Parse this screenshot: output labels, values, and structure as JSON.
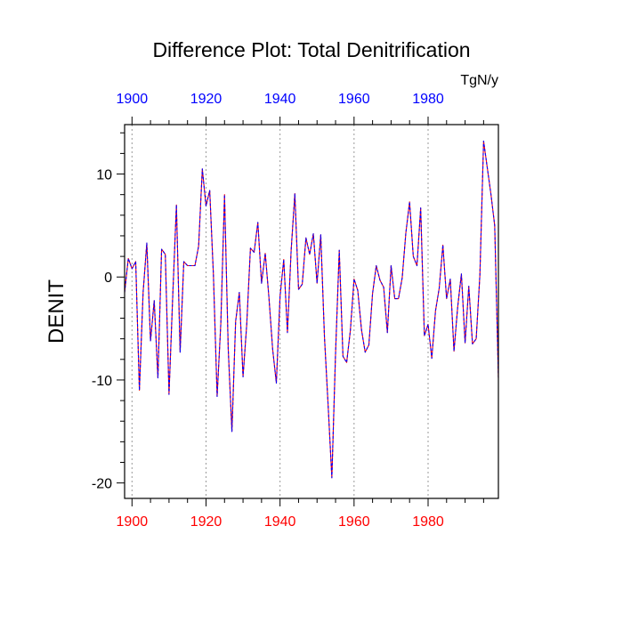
{
  "chart_data": {
    "type": "line",
    "title": "Difference Plot: Total Denitrification",
    "units": "TgN/y",
    "ylabel": "DENIT",
    "xlabel": "",
    "xlim": [
      1898,
      1999
    ],
    "ylim": [
      -21.5,
      14.8
    ],
    "x_ticks": [
      1900,
      1920,
      1940,
      1960,
      1980
    ],
    "y_ticks": [
      10,
      0,
      -10,
      -20
    ],
    "y_tick_labels": [
      "10",
      "0",
      "-10",
      "-20"
    ],
    "x_tick_labels_bottom": [
      "1900",
      "1920",
      "1940",
      "1960",
      "1980"
    ],
    "x_tick_labels_top": [
      "1900",
      "1920",
      "1940",
      "1960",
      "1980"
    ],
    "grid": "vertical dotted at major x ticks",
    "colors": {
      "bottom_axis_labels": "#ff0000",
      "top_axis_labels": "#0000ff",
      "series_a": "#ff0000",
      "series_b": "#0000ff",
      "axes": "#000000",
      "grid": "#9a9a9a"
    },
    "series": [
      {
        "name": "DENIT difference",
        "style": "dashed red/blue",
        "x": [
          1898,
          1899,
          1900,
          1901,
          1902,
          1903,
          1904,
          1905,
          1906,
          1907,
          1908,
          1909,
          1910,
          1911,
          1912,
          1913,
          1914,
          1915,
          1916,
          1917,
          1918,
          1919,
          1920,
          1921,
          1922,
          1923,
          1924,
          1925,
          1926,
          1927,
          1928,
          1929,
          1930,
          1931,
          1932,
          1933,
          1934,
          1935,
          1936,
          1937,
          1938,
          1939,
          1940,
          1941,
          1942,
          1943,
          1944,
          1945,
          1946,
          1947,
          1948,
          1949,
          1950,
          1951,
          1952,
          1953,
          1954,
          1955,
          1956,
          1957,
          1958,
          1959,
          1960,
          1961,
          1962,
          1963,
          1964,
          1965,
          1966,
          1967,
          1968,
          1969,
          1970,
          1971,
          1972,
          1973,
          1974,
          1975,
          1976,
          1977,
          1978,
          1979,
          1980,
          1981,
          1982,
          1983,
          1984,
          1985,
          1986,
          1987,
          1988,
          1989,
          1990,
          1991,
          1992,
          1993,
          1994,
          1995,
          1996,
          1997,
          1998,
          1999
        ],
        "y": [
          -1.5,
          1.8,
          0.8,
          1.5,
          -11.0,
          -1.5,
          3.3,
          -6.2,
          -2.3,
          -9.8,
          2.7,
          2.2,
          -11.4,
          -1.9,
          7.0,
          -7.3,
          1.5,
          1.1,
          1.1,
          1.1,
          3.0,
          10.5,
          6.9,
          8.4,
          0.2,
          -11.6,
          -4.5,
          8.0,
          -7.0,
          -15.0,
          -4.3,
          -1.5,
          -9.7,
          -4.6,
          2.8,
          2.4,
          5.3,
          -0.6,
          2.3,
          -2.0,
          -7.0,
          -10.3,
          -1.9,
          1.7,
          -5.4,
          2.6,
          8.1,
          -1.2,
          -0.7,
          3.8,
          2.2,
          4.2,
          -0.6,
          4.1,
          -5.8,
          -12.5,
          -19.5,
          -7.4,
          2.6,
          -7.7,
          -8.3,
          -5.2,
          -0.2,
          -1.3,
          -5.1,
          -7.3,
          -6.6,
          -1.6,
          1.1,
          -0.3,
          -1.0,
          -5.4,
          1.1,
          -2.1,
          -2.1,
          -0.1,
          4.3,
          7.3,
          2.0,
          1.1,
          6.7,
          -5.7,
          -4.6,
          -7.9,
          -3.3,
          -1.1,
          3.1,
          -2.1,
          -0.2,
          -7.2,
          -2.9,
          0.3,
          -6.4,
          -0.9,
          -6.5,
          -6.0,
          0.2,
          13.2,
          10.6,
          8.0,
          5.0,
          -9.8
        ]
      }
    ]
  }
}
